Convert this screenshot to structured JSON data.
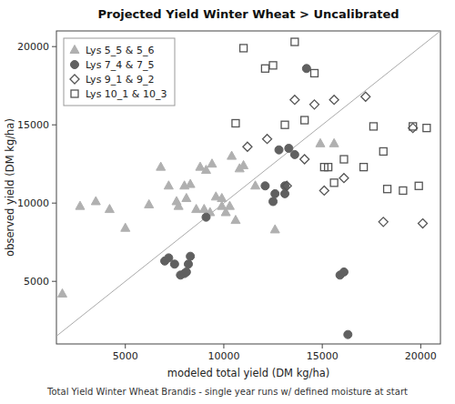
{
  "chart_data": {
    "type": "scatter",
    "title": "Projected Yield Winter Wheat > Uncalibrated",
    "subtitle": "Total Yield Winter Wheat Brandis - single year runs w/ defined moisture at start",
    "xlabel": "modeled total yield (DM kg/ha)",
    "ylabel": "observed yield (DM kg/ha)",
    "xlim": [
      1500,
      21000
    ],
    "ylim": [
      1000,
      21000
    ],
    "xticks": [
      5000,
      10000,
      15000,
      20000
    ],
    "yticks": [
      5000,
      10000,
      15000,
      20000
    ],
    "grid": false,
    "legend": "upper left",
    "series": [
      {
        "name": "Lys 5_5 & 5_6",
        "marker": "triangle",
        "color": "#b0b0b0",
        "x": [
          1800,
          2700,
          3500,
          4200,
          5000,
          6200,
          6800,
          7200,
          7600,
          7700,
          8000,
          8100,
          8300,
          8600,
          8800,
          9000,
          9100,
          9300,
          9400,
          9600,
          9900,
          9900,
          10100,
          10300,
          10400,
          10600,
          10800,
          11000,
          11600,
          12600,
          14900,
          15600
        ],
        "values": [
          4200,
          9800,
          10100,
          9600,
          8400,
          9900,
          12300,
          11100,
          10100,
          9800,
          11100,
          10300,
          11200,
          9600,
          12300,
          9600,
          12100,
          9400,
          12500,
          10400,
          10300,
          9800,
          9400,
          9800,
          13000,
          8900,
          12200,
          12400,
          11100,
          8300,
          13800,
          13800
        ]
      },
      {
        "name": "Lys 7_4 & 7_5",
        "marker": "circle",
        "color": "#606060",
        "x": [
          7000,
          7200,
          7500,
          7800,
          8000,
          8100,
          8200,
          8300,
          9100,
          12100,
          12500,
          12600,
          12800,
          13100,
          13100,
          13300,
          13600,
          14200,
          15900,
          16100,
          16300
        ],
        "values": [
          6300,
          6500,
          6100,
          5400,
          5500,
          5600,
          6100,
          6600,
          9100,
          11100,
          10100,
          10600,
          13400,
          11100,
          10600,
          13500,
          13100,
          18600,
          5400,
          5600,
          1600
        ]
      },
      {
        "name": "Lys 9_1 & 9_2",
        "marker": "diamond-open",
        "color": "#555555",
        "x": [
          11200,
          12200,
          13200,
          13600,
          14100,
          14600,
          15100,
          15600,
          16100,
          17200,
          18100,
          19600,
          20100
        ],
        "values": [
          13600,
          14100,
          11100,
          16600,
          12800,
          16300,
          10800,
          16600,
          11600,
          16800,
          8800,
          14800,
          8700
        ]
      },
      {
        "name": "Lys 10_1 & 10_3",
        "marker": "square-open",
        "color": "#555555",
        "x": [
          10600,
          11000,
          12100,
          12500,
          13100,
          13600,
          14100,
          14600,
          15100,
          15300,
          15600,
          16100,
          17100,
          17600,
          18100,
          18300,
          19100,
          19600,
          19900,
          20300
        ],
        "values": [
          15100,
          19900,
          18600,
          18800,
          15000,
          20300,
          15300,
          18300,
          12300,
          12300,
          11300,
          12800,
          12300,
          14900,
          13300,
          10900,
          10800,
          14900,
          11100,
          14800
        ]
      }
    ]
  }
}
